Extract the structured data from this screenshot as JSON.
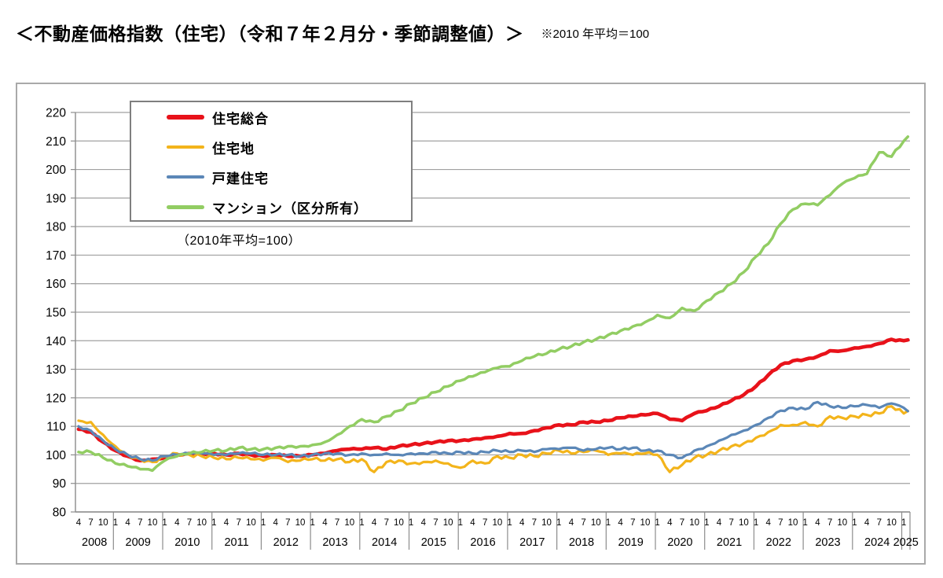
{
  "header": {
    "title": "＜不動産価格指数（住宅）（令和７年２月分・季節調整値）＞",
    "note": "※2010 年平均＝100"
  },
  "chart_data": {
    "type": "line",
    "title": "不動産価格指数（住宅）",
    "legend_note": "（2010年平均=100）",
    "legend_position": "top-left",
    "grid": true,
    "ylim": [
      80,
      220
    ],
    "y_ticks": [
      80,
      90,
      100,
      110,
      120,
      130,
      140,
      150,
      160,
      170,
      180,
      190,
      200,
      210,
      220
    ],
    "x_start": "2008-04",
    "x_end": "2025-02",
    "month_label_cycle": [
      "4",
      "7",
      "10",
      "1"
    ],
    "years": [
      2008,
      2009,
      2010,
      2011,
      2012,
      2013,
      2014,
      2015,
      2016,
      2017,
      2018,
      2019,
      2020,
      2021,
      2022,
      2023,
      2024,
      2025
    ],
    "x_dates": [
      "2008-04",
      "2008-07",
      "2008-10",
      "2009-01",
      "2009-04",
      "2009-07",
      "2009-10",
      "2010-01",
      "2010-04",
      "2010-07",
      "2010-10",
      "2011-01",
      "2011-04",
      "2011-07",
      "2011-10",
      "2012-01",
      "2012-04",
      "2012-07",
      "2012-10",
      "2013-01",
      "2013-04",
      "2013-07",
      "2013-10",
      "2014-01",
      "2014-04",
      "2014-07",
      "2014-10",
      "2015-01",
      "2015-04",
      "2015-07",
      "2015-10",
      "2016-01",
      "2016-04",
      "2016-07",
      "2016-10",
      "2017-01",
      "2017-04",
      "2017-07",
      "2017-10",
      "2018-01",
      "2018-04",
      "2018-07",
      "2018-10",
      "2019-01",
      "2019-04",
      "2019-07",
      "2019-10",
      "2020-01",
      "2020-04",
      "2020-07",
      "2020-10",
      "2021-01",
      "2021-04",
      "2021-07",
      "2021-10",
      "2022-01",
      "2022-04",
      "2022-07",
      "2022-10",
      "2023-01",
      "2023-04",
      "2023-07",
      "2023-10",
      "2024-01",
      "2024-04",
      "2024-07",
      "2024-10",
      "2025-01",
      "2025-02"
    ],
    "series": [
      {
        "name": "住宅総合",
        "color": "#e8121a",
        "stroke_width": 4.6,
        "wiggle": 0.3,
        "phase": 0.0,
        "values": [
          109,
          108,
          104.5,
          101.5,
          99.5,
          98,
          98.5,
          99,
          100,
          100.5,
          100.5,
          100.5,
          100,
          100.5,
          100,
          99.5,
          100,
          99.5,
          99.5,
          100,
          100.5,
          101.5,
          102,
          102,
          102.5,
          102,
          103,
          103.5,
          104,
          104.5,
          105,
          105,
          105.5,
          106,
          106.5,
          107.5,
          107.5,
          108.5,
          109.5,
          110.5,
          110.5,
          111.5,
          111.5,
          112,
          113,
          113.5,
          114,
          114.5,
          112.5,
          112,
          114.5,
          115.5,
          117,
          119,
          121,
          124,
          128,
          131.5,
          133,
          133.5,
          134.5,
          136.5,
          136.5,
          137.5,
          138,
          139,
          140.5,
          140,
          140.3
        ]
      },
      {
        "name": "住宅地",
        "color": "#f3b41b",
        "stroke_width": 3.2,
        "wiggle": 0.65,
        "phase": 1.1,
        "values": [
          112,
          111.5,
          107,
          103,
          100,
          98.5,
          97.5,
          99.5,
          100.5,
          100,
          99.5,
          99,
          98.5,
          99,
          98.5,
          98,
          99,
          97.5,
          98,
          98.5,
          98,
          98.5,
          97.5,
          98.5,
          94,
          97.5,
          98,
          97,
          97.5,
          98,
          97,
          95.5,
          98,
          97,
          99.5,
          99,
          100,
          99.5,
          100.5,
          101.5,
          100.5,
          101,
          101.5,
          100,
          100.5,
          100,
          100.5,
          100,
          94,
          96.5,
          99,
          100,
          101.5,
          103,
          104,
          106,
          108,
          110.5,
          110.5,
          111.5,
          110,
          113.5,
          113,
          113.5,
          114,
          114.5,
          117,
          114.5,
          115.4
        ]
      },
      {
        "name": "戸建住宅",
        "color": "#5b87b7",
        "stroke_width": 3.2,
        "wiggle": 0.45,
        "phase": 2.2,
        "values": [
          110,
          108.5,
          105,
          102,
          100,
          98.5,
          98,
          99.5,
          100,
          100.5,
          100.5,
          100,
          100,
          100.5,
          100.5,
          100,
          100,
          100,
          99.5,
          100,
          100.5,
          100.5,
          100,
          100.5,
          100,
          100.5,
          100,
          100.5,
          100.5,
          101,
          100.5,
          101,
          100.5,
          101,
          101.5,
          101,
          101.5,
          101,
          102,
          102,
          102.5,
          101.5,
          102,
          102.5,
          102,
          102.5,
          101.5,
          101.5,
          100,
          99,
          101.5,
          103,
          105,
          107,
          108.5,
          110.5,
          113,
          115.5,
          116.5,
          116,
          118.5,
          117,
          116.5,
          117,
          117.5,
          116.5,
          118,
          116.5,
          115.3
        ]
      },
      {
        "name": "マンション（区分所有）",
        "color": "#92cd63",
        "stroke_width": 3.5,
        "wiggle": 0.5,
        "phase": 3.3,
        "values": [
          101,
          101,
          99,
          97,
          96,
          95,
          94.5,
          98,
          99.5,
          100.5,
          101,
          101.5,
          101.5,
          102.5,
          102,
          102,
          102.5,
          103,
          103,
          103.5,
          104.5,
          107,
          110,
          112.5,
          111.5,
          113.5,
          115.5,
          118,
          120,
          122,
          124,
          126,
          127.5,
          129,
          130.5,
          131,
          133,
          134.5,
          135.5,
          137,
          138,
          139.5,
          140.5,
          142,
          143.5,
          145,
          146.5,
          149,
          148,
          151.5,
          150.5,
          154,
          157,
          160,
          164,
          169.5,
          174,
          181,
          186,
          188,
          187.5,
          191,
          195,
          197,
          198.5,
          206,
          204.5,
          210,
          211.5
        ]
      }
    ],
    "axis_color": "#8c8c8c",
    "grid_color": "#a0a0a0"
  }
}
